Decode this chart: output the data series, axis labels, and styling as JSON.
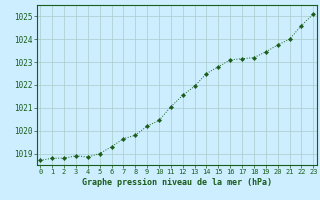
{
  "x": [
    0,
    1,
    2,
    3,
    4,
    5,
    6,
    7,
    8,
    9,
    10,
    11,
    12,
    13,
    14,
    15,
    16,
    17,
    18,
    19,
    20,
    21,
    22,
    23
  ],
  "y": [
    1018.7,
    1018.8,
    1018.8,
    1018.9,
    1018.85,
    1019.0,
    1019.3,
    1019.65,
    1019.8,
    1020.2,
    1020.45,
    1021.05,
    1021.55,
    1021.95,
    1022.5,
    1022.8,
    1023.1,
    1023.15,
    1023.2,
    1023.45,
    1023.75,
    1024.0,
    1024.6,
    1025.1
  ],
  "line_color": "#1a5c1a",
  "marker": "D",
  "marker_size": 2.2,
  "bg_color": "#cceeff",
  "grid_color": "#aacccc",
  "axis_color": "#1a5c1a",
  "xlabel": "Graphe pression niveau de la mer (hPa)",
  "xlabel_color": "#1a5c1a",
  "ylim": [
    1018.5,
    1025.5
  ],
  "yticks": [
    1019,
    1020,
    1021,
    1022,
    1023,
    1024,
    1025
  ],
  "xticks": [
    0,
    1,
    2,
    3,
    4,
    5,
    6,
    7,
    8,
    9,
    10,
    11,
    12,
    13,
    14,
    15,
    16,
    17,
    18,
    19,
    20,
    21,
    22,
    23
  ],
  "xlim": [
    -0.3,
    23.3
  ]
}
